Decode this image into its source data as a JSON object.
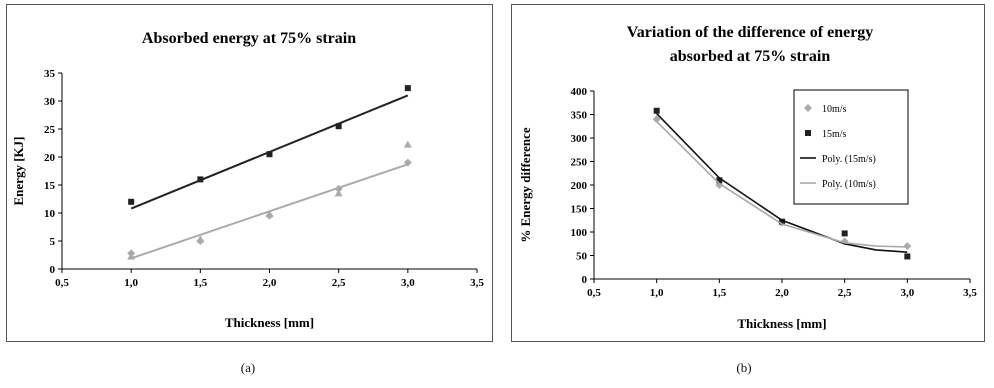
{
  "captions": {
    "a": "(a)",
    "b": "(b)"
  },
  "chart_data": [
    {
      "type": "scatter",
      "title": "Absorbed energy at 75% strain",
      "xlabel": "Thickness [mm]",
      "ylabel": "Energy [KJ]",
      "xlim": [
        0.5,
        3.5
      ],
      "ylim": [
        0,
        35
      ],
      "x_ticks": [
        "0,5",
        "1,0",
        "1,5",
        "2,0",
        "2,5",
        "3,0",
        "3,5"
      ],
      "y_ticks": [
        "0",
        "5",
        "10",
        "15",
        "20",
        "25",
        "30",
        "35"
      ],
      "grid": false,
      "legend": null,
      "series": [
        {
          "color": "#222222",
          "marker": "square",
          "points": [
            [
              1.0,
              12.0
            ],
            [
              1.5,
              16.0
            ],
            [
              2.0,
              20.5
            ],
            [
              2.5,
              25.5
            ],
            [
              3.0,
              32.3
            ]
          ],
          "trendline": [
            [
              1.0,
              10.8
            ],
            [
              3.0,
              31.0
            ]
          ]
        },
        {
          "color": "#aaaaaa",
          "marker": "triangle",
          "points": [
            [
              1.0,
              2.2
            ],
            [
              1.5,
              5.3
            ],
            [
              2.0,
              9.8
            ],
            [
              2.5,
              13.5
            ],
            [
              3.0,
              22.2
            ]
          ]
        },
        {
          "color": "#aaaaaa",
          "marker": "diamond",
          "points": [
            [
              1.0,
              2.8
            ],
            [
              1.5,
              5.0
            ],
            [
              2.0,
              9.5
            ],
            [
              2.5,
              14.3
            ],
            [
              3.0,
              19.0
            ]
          ],
          "trendline": [
            [
              1.0,
              1.9
            ],
            [
              3.0,
              18.7
            ]
          ]
        }
      ]
    },
    {
      "type": "scatter",
      "title": "Variation of the difference of energy absorbed at 75% strain",
      "title_lines": [
        "Variation of the difference of energy",
        "absorbed at 75% strain"
      ],
      "xlabel": "Thickness [mm]",
      "ylabel": "% Energy difference",
      "xlim": [
        0.5,
        3.5
      ],
      "ylim": [
        0,
        400
      ],
      "x_ticks": [
        "0,5",
        "1,0",
        "1,5",
        "2,0",
        "2,5",
        "3,0",
        "3,5"
      ],
      "y_ticks": [
        "0",
        "50",
        "100",
        "150",
        "200",
        "250",
        "300",
        "350",
        "400"
      ],
      "grid": false,
      "legend_position": "top-right",
      "series": [
        {
          "name": "10m/s",
          "color": "#aaaaaa",
          "marker": "diamond",
          "points": [
            [
              1.0,
              340
            ],
            [
              1.5,
              200
            ],
            [
              2.0,
              120
            ],
            [
              2.5,
              80
            ],
            [
              3.0,
              70
            ]
          ]
        },
        {
          "name": "15m/s",
          "color": "#222222",
          "marker": "square",
          "points": [
            [
              1.0,
              358
            ],
            [
              1.5,
              210
            ],
            [
              2.0,
              122
            ],
            [
              2.5,
              97
            ],
            [
              3.0,
              48
            ]
          ]
        },
        {
          "name": "Poly. (15m/s)",
          "color": "#111111",
          "marker": "line",
          "points": [
            [
              1.0,
              352
            ],
            [
              1.5,
              215
            ],
            [
              2.0,
              125
            ],
            [
              2.5,
              75
            ],
            [
              2.75,
              62
            ],
            [
              3.0,
              57
            ]
          ]
        },
        {
          "name": "Poly. (10m/s)",
          "color": "#aaaaaa",
          "marker": "line",
          "points": [
            [
              1.0,
              335
            ],
            [
              1.5,
              203
            ],
            [
              2.0,
              117
            ],
            [
              2.5,
              77
            ],
            [
              2.75,
              70
            ],
            [
              3.0,
              68
            ]
          ]
        }
      ]
    }
  ]
}
